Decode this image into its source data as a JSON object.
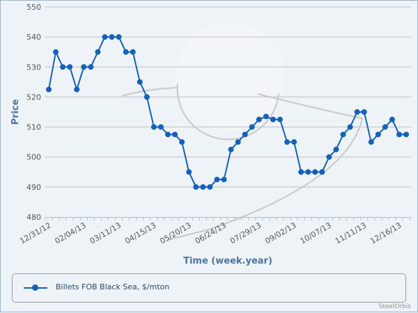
{
  "chart_data": {
    "type": "line",
    "title": "",
    "xlabel": "Time (week.year)",
    "ylabel": "Price",
    "ylim": [
      480,
      550
    ],
    "yticks": [
      480,
      490,
      500,
      510,
      520,
      530,
      540,
      550
    ],
    "xtick_labels": [
      "12/31/12",
      "02/04/13",
      "03/11/13",
      "04/15/13",
      "05/20/13",
      "06/24/13",
      "07/29/13",
      "09/02/13",
      "10/07/13",
      "11/11/13",
      "12/16/13"
    ],
    "xtick_every": 5,
    "grid": true,
    "legend_position": "bottom",
    "series": [
      {
        "name": "Billets FOB Black Sea, $/mton",
        "color": "#1361bd",
        "values": [
          522.5,
          535,
          530,
          530,
          522.5,
          530,
          530,
          535,
          540,
          540,
          540,
          535,
          535,
          525,
          520,
          510,
          510,
          507.5,
          507.5,
          505,
          495,
          490,
          490,
          490,
          492.5,
          492.5,
          502.5,
          505,
          507.5,
          510,
          512.5,
          513.5,
          512.5,
          512.5,
          505,
          505,
          495,
          495,
          495,
          495,
          500,
          502.5,
          507.5,
          510,
          515,
          515,
          505,
          507.5,
          510,
          512.5,
          507.5,
          507.5
        ]
      }
    ]
  },
  "credit": "SteelOrbis"
}
